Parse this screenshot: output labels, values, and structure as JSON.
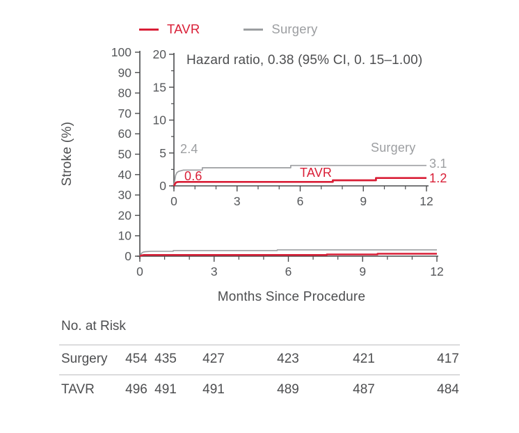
{
  "colors": {
    "tavr": "#d91e36",
    "surgery": "#9c9ea1",
    "text": "#4d4e50",
    "axis": "#4a4b4d",
    "rule": "#bcbdbf"
  },
  "legend": {
    "items": [
      {
        "label": "TAVR",
        "color": "#d91e36"
      },
      {
        "label": "Surgery",
        "color": "#9c9ea1"
      }
    ]
  },
  "annotation": {
    "hazard_ratio": "Hazard ratio, 0.38 (95% CI, 0. 15–1.00)"
  },
  "main_axis": {
    "ylabel": "Stroke (%)",
    "xlabel": "Months Since Procedure"
  },
  "curve_labels": {
    "surgery_early": "2.4",
    "tavr_early": "0.6",
    "surgery_line": "Surgery",
    "tavr_line": "TAVR",
    "surgery_end": "3.1",
    "tavr_end": "1.2"
  },
  "chart_data": {
    "type": "line",
    "subtype": "kaplan-meier-step-with-inset",
    "title": "",
    "xlabel": "Months Since Procedure",
    "ylabel": "Stroke (%)",
    "xlim": [
      0,
      12
    ],
    "main_ylim": [
      0,
      100
    ],
    "inset_ylim": [
      0,
      20
    ],
    "x_major_ticks": [
      0,
      3,
      6,
      9,
      12
    ],
    "x_minor_months": [
      1,
      2,
      4,
      5,
      7,
      8,
      10,
      11
    ],
    "main_y_ticks": [
      0,
      10,
      20,
      30,
      40,
      50,
      60,
      70,
      80,
      90,
      100
    ],
    "inset_y_ticks": [
      0,
      5,
      10,
      15,
      20
    ],
    "inset_y_minor_ticks": [
      2.5,
      7.5,
      12.5,
      17.5
    ],
    "grid": false,
    "legend_position": "top",
    "series": [
      {
        "name": "Surgery",
        "color": "#9c9ea1",
        "rate_30day": 2.4,
        "rate_12month": 3.1,
        "points": [
          [
            0,
            0
          ],
          [
            0.04,
            0.8
          ],
          [
            0.08,
            1.6
          ],
          [
            0.14,
            2.0
          ],
          [
            0.22,
            2.2
          ],
          [
            0.33,
            2.3
          ],
          [
            0.45,
            2.4
          ],
          [
            1.35,
            2.4
          ],
          [
            1.35,
            2.75
          ],
          [
            5.55,
            2.75
          ],
          [
            5.55,
            3.1
          ],
          [
            12,
            3.1
          ]
        ]
      },
      {
        "name": "TAVR",
        "color": "#d91e36",
        "rate_30day": 0.6,
        "rate_12month": 1.2,
        "points": [
          [
            0,
            0
          ],
          [
            0.08,
            0.45
          ],
          [
            0.15,
            0.58
          ],
          [
            0.25,
            0.6
          ],
          [
            7.55,
            0.6
          ],
          [
            7.55,
            0.85
          ],
          [
            9.6,
            0.85
          ],
          [
            9.6,
            1.2
          ],
          [
            12,
            1.2
          ]
        ]
      }
    ]
  },
  "risk_table": {
    "title": "No. at Risk",
    "columns_months": [
      0,
      1,
      3,
      6,
      9,
      12
    ],
    "rows": [
      {
        "label": "Surgery",
        "values": [
          "454",
          "435",
          "427",
          "423",
          "421",
          "417"
        ]
      },
      {
        "label": "TAVR",
        "values": [
          "496",
          "491",
          "491",
          "489",
          "487",
          "484"
        ]
      }
    ]
  }
}
